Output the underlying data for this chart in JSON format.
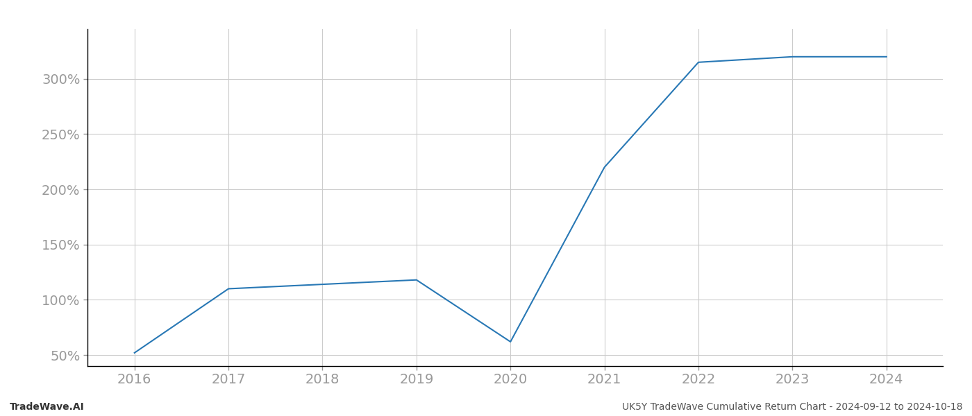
{
  "x_values": [
    2016,
    2017,
    2018,
    2019,
    2020,
    2021,
    2022,
    2023,
    2024
  ],
  "y_values": [
    52,
    110,
    114,
    118,
    62,
    220,
    315,
    320,
    320
  ],
  "line_color": "#2878b5",
  "line_width": 1.5,
  "background_color": "#ffffff",
  "grid_color": "#cccccc",
  "footer_left": "TradeWave.AI",
  "footer_right": "UK5Y TradeWave Cumulative Return Chart - 2024-09-12 to 2024-10-18",
  "xlim": [
    2015.5,
    2024.6
  ],
  "ylim": [
    40,
    345
  ],
  "yticks": [
    50,
    100,
    150,
    200,
    250,
    300
  ],
  "xticks": [
    2016,
    2017,
    2018,
    2019,
    2020,
    2021,
    2022,
    2023,
    2024
  ],
  "tick_color": "#aaaaaa",
  "label_color": "#999999",
  "footer_fontsize": 10,
  "tick_fontsize": 14
}
